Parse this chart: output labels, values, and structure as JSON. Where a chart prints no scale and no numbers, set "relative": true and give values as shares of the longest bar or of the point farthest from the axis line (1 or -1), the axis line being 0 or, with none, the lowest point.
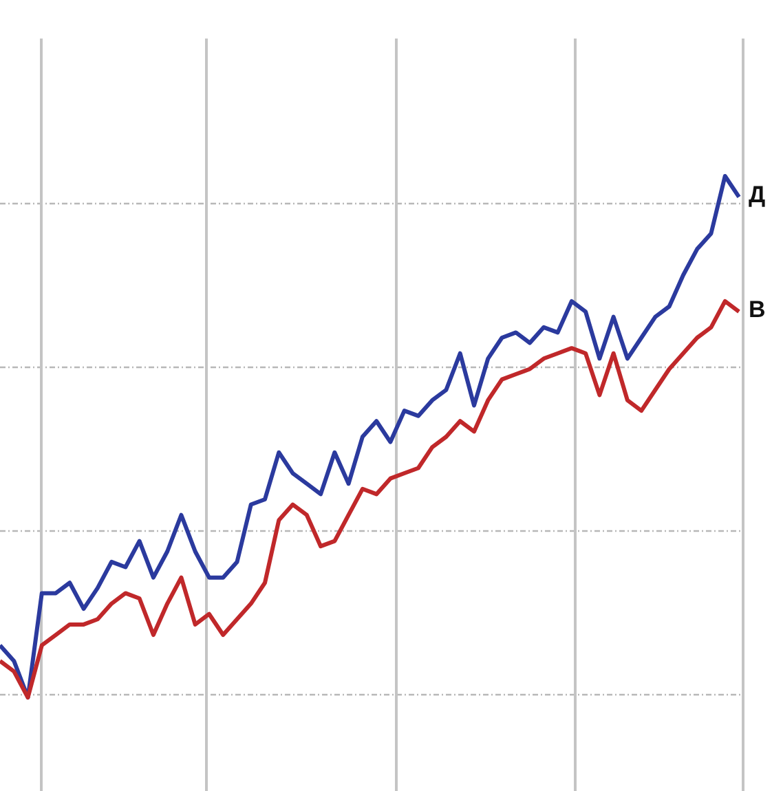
{
  "chart_data": {
    "type": "line",
    "relative": true,
    "grid": true,
    "legend": false,
    "marker": "none",
    "line_style": "solid",
    "categories": [
      null,
      null,
      null,
      null,
      null,
      null,
      null,
      null,
      null,
      null,
      null,
      null,
      null,
      null,
      null,
      null,
      null,
      null,
      null,
      null,
      null,
      null,
      null,
      null,
      null,
      null,
      null,
      null,
      null,
      null,
      null,
      null,
      null,
      null,
      null,
      null,
      null,
      null,
      null,
      null,
      null,
      null,
      null,
      null,
      null,
      null,
      null,
      null,
      null,
      null,
      null,
      null,
      null,
      null
    ],
    "series": [
      {
        "name": "Д",
        "color": "#2b3a9e",
        "values": [
          0.1,
          0.07,
          0.0,
          0.2,
          0.2,
          0.22,
          0.17,
          0.21,
          0.26,
          0.25,
          0.3,
          0.23,
          0.28,
          0.35,
          0.28,
          0.23,
          0.23,
          0.26,
          0.37,
          0.38,
          0.47,
          0.43,
          0.41,
          0.39,
          0.47,
          0.41,
          0.5,
          0.53,
          0.49,
          0.55,
          0.54,
          0.57,
          0.59,
          0.66,
          0.56,
          0.65,
          0.69,
          0.7,
          0.68,
          0.71,
          0.7,
          0.76,
          0.74,
          0.65,
          0.73,
          0.65,
          0.69,
          0.73,
          0.75,
          0.81,
          0.86,
          0.89,
          1.0,
          0.96
        ]
      },
      {
        "name": "В",
        "color": "#c0282a",
        "values": [
          0.07,
          0.05,
          0.0,
          0.1,
          0.12,
          0.14,
          0.14,
          0.15,
          0.18,
          0.2,
          0.19,
          0.12,
          0.18,
          0.23,
          0.14,
          0.16,
          0.12,
          0.15,
          0.18,
          0.22,
          0.34,
          0.37,
          0.35,
          0.29,
          0.3,
          0.35,
          0.4,
          0.39,
          0.42,
          0.43,
          0.44,
          0.48,
          0.5,
          0.53,
          0.51,
          0.57,
          0.61,
          0.62,
          0.63,
          0.65,
          0.66,
          0.67,
          0.66,
          0.58,
          0.66,
          0.57,
          0.55,
          0.59,
          0.63,
          0.66,
          0.69,
          0.71,
          0.76,
          0.74
        ]
      }
    ]
  }
}
